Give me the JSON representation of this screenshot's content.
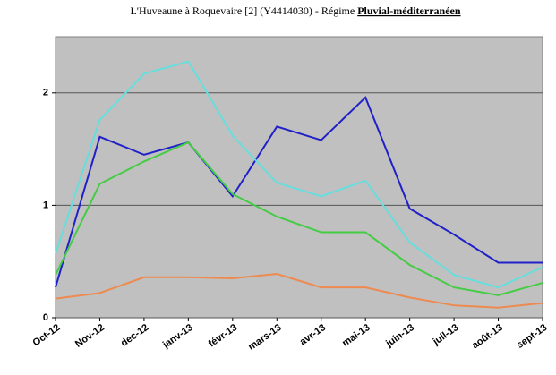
{
  "chart_data": {
    "type": "line",
    "title": "L'Huveaune à Roquevaire [2] (Y4414030) - Régime ",
    "title_emphasis": "Pluvial-méditerranéen",
    "categories": [
      "Oct-12",
      "Nov-12",
      "dec-12",
      "janv-13",
      "févr-13",
      "mars-13",
      "avr-13",
      "mai-13",
      "juin-13",
      "juil-13",
      "août-13",
      "sept-13"
    ],
    "series": [
      {
        "color": "#2020c8",
        "values": [
          0.27,
          1.61,
          1.45,
          1.56,
          1.08,
          1.7,
          1.58,
          1.96,
          0.97,
          0.74,
          0.49,
          0.49
        ]
      },
      {
        "color": "#66dede",
        "values": [
          0.57,
          1.76,
          2.17,
          2.28,
          1.62,
          1.2,
          1.08,
          1.22,
          0.67,
          0.38,
          0.27,
          0.45
        ]
      },
      {
        "color": "#44cc44",
        "values": [
          0.38,
          1.19,
          1.39,
          1.56,
          1.1,
          0.9,
          0.76,
          0.76,
          0.47,
          0.27,
          0.2,
          0.31
        ]
      },
      {
        "color": "#ee8a50",
        "values": [
          0.17,
          0.22,
          0.36,
          0.36,
          0.35,
          0.39,
          0.27,
          0.27,
          0.18,
          0.11,
          0.09,
          0.13
        ]
      }
    ],
    "ylim": [
      0,
      2.5
    ],
    "yticks": [
      0,
      1,
      2
    ],
    "grid": true,
    "plot_background": "#c0c0c0"
  }
}
